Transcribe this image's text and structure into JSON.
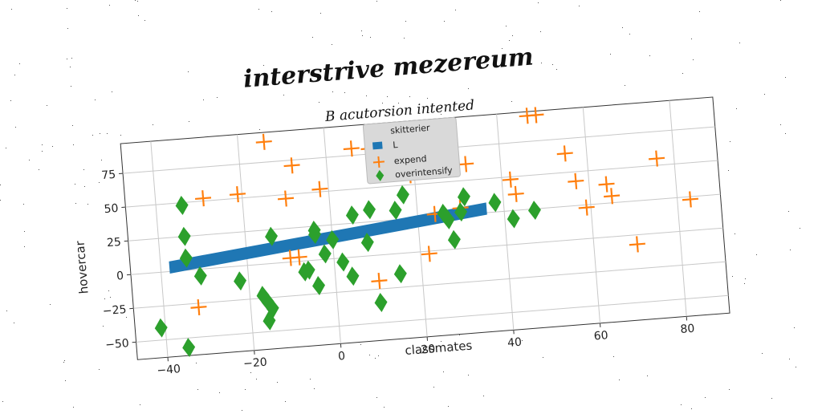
{
  "chart_data": {
    "type": "scatter",
    "title": "interstrive mezereum",
    "subtitle": "B acutorsion intented",
    "xlabel": "classmates",
    "ylabel": "hovercar",
    "xlim": [
      -47,
      90
    ],
    "ylim": [
      -63,
      97
    ],
    "xticks": [
      -40,
      -20,
      0,
      20,
      40,
      60,
      80
    ],
    "yticks": [
      -50,
      -25,
      0,
      25,
      50,
      75
    ],
    "grid": true,
    "legend": {
      "title": "skitterier",
      "placement": "top-center"
    },
    "series": [
      {
        "name": "L",
        "type": "band",
        "color": "#1f77b4",
        "x": [
          -38,
          36
        ],
        "center": [
          3,
          28
        ],
        "half_width": 4.5
      },
      {
        "name": "expend",
        "marker": "plus",
        "color": "#ff7f0e",
        "points": [
          [
            -29,
            52
          ],
          [
            -21,
            53
          ],
          [
            -14,
            90
          ],
          [
            -8,
            71
          ],
          [
            -10,
            47
          ],
          [
            -2,
            52
          ],
          [
            6,
            80
          ],
          [
            10,
            79
          ],
          [
            -10,
            3
          ],
          [
            -8,
            3
          ],
          [
            -32,
            -28
          ],
          [
            10,
            -19
          ],
          [
            22,
            -2
          ],
          [
            19,
            57
          ],
          [
            22,
            69
          ],
          [
            24,
            27
          ],
          [
            30,
            30
          ],
          [
            32,
            62
          ],
          [
            42,
            48
          ],
          [
            43,
            37
          ],
          [
            47,
            94
          ],
          [
            49,
            94
          ],
          [
            55,
            64
          ],
          [
            57,
            43
          ],
          [
            59,
            23
          ],
          [
            64,
            39
          ],
          [
            65,
            30
          ],
          [
            71,
            103
          ],
          [
            70,
            -7
          ],
          [
            76,
            55
          ],
          [
            83,
            23
          ]
        ]
      },
      {
        "name": "overintensify",
        "marker": "diamond",
        "color": "#2ca02c",
        "points": [
          [
            -41,
            -41
          ],
          [
            -35,
            -57
          ],
          [
            -34,
            48
          ],
          [
            -34,
            25
          ],
          [
            -34,
            9
          ],
          [
            -31,
            -5
          ],
          [
            -22,
            -11
          ],
          [
            -17,
            -23
          ],
          [
            -16,
            -42
          ],
          [
            -16,
            -28
          ],
          [
            -15,
            -33
          ],
          [
            -14,
            20
          ],
          [
            -7,
            -8
          ],
          [
            -6,
            -7
          ],
          [
            -4,
            -19
          ],
          [
            -4,
            22
          ],
          [
            -4,
            19
          ],
          [
            -2,
            4
          ],
          [
            0,
            14
          ],
          [
            2,
            -3
          ],
          [
            4,
            -14
          ],
          [
            5,
            31
          ],
          [
            8,
            10
          ],
          [
            9,
            34
          ],
          [
            10,
            -35
          ],
          [
            15,
            -15
          ],
          [
            15,
            32
          ],
          [
            17,
            43
          ],
          [
            20,
            63
          ],
          [
            26,
            27
          ],
          [
            27,
            22
          ],
          [
            28,
            7
          ],
          [
            30,
            27
          ],
          [
            31,
            38
          ],
          [
            38,
            32
          ],
          [
            42,
            19
          ],
          [
            47,
            24
          ]
        ]
      }
    ]
  }
}
